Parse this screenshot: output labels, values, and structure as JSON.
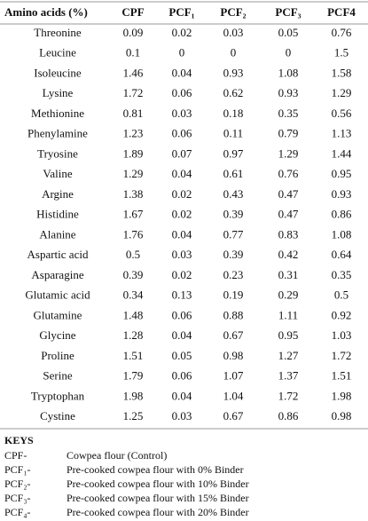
{
  "table": {
    "header": [
      "Amino acids (%)",
      "CPF",
      "PCF₁",
      "PCF₂",
      "PCF₃",
      "PCF4"
    ],
    "rows": [
      [
        "Threonine",
        0.09,
        0.02,
        0.03,
        0.05,
        0.76
      ],
      [
        "Leucine",
        0.1,
        0,
        0,
        0,
        1.5
      ],
      [
        "Isoleucine",
        1.46,
        0.04,
        0.93,
        1.08,
        1.58
      ],
      [
        "Lysine",
        1.72,
        0.06,
        0.62,
        0.93,
        1.29
      ],
      [
        "Methionine",
        0.81,
        0.03,
        0.18,
        0.35,
        0.56
      ],
      [
        "Phenylamine",
        1.23,
        0.06,
        0.11,
        0.79,
        1.13
      ],
      [
        "Tryosine",
        1.89,
        0.07,
        0.97,
        1.29,
        1.44
      ],
      [
        "Valine",
        1.29,
        0.04,
        0.61,
        0.76,
        0.95
      ],
      [
        "Argine",
        1.38,
        0.02,
        0.43,
        0.47,
        0.93
      ],
      [
        "Histidine",
        1.67,
        0.02,
        0.39,
        0.47,
        0.86
      ],
      [
        "Alanine",
        1.76,
        0.04,
        0.77,
        0.83,
        1.08
      ],
      [
        "Aspartic acid",
        0.5,
        0.03,
        0.39,
        0.42,
        0.64
      ],
      [
        "Asparagine",
        0.39,
        0.02,
        0.23,
        0.31,
        0.35
      ],
      [
        "Glutamic acid",
        0.34,
        0.13,
        0.19,
        0.29,
        0.5
      ],
      [
        "Glutamine",
        1.48,
        0.06,
        0.88,
        1.11,
        0.92
      ],
      [
        "Glycine",
        1.28,
        0.04,
        0.67,
        0.95,
        1.03
      ],
      [
        "Proline",
        1.51,
        0.05,
        0.98,
        1.27,
        1.72
      ],
      [
        "Serine",
        1.79,
        0.06,
        1.07,
        1.37,
        1.51
      ],
      [
        "Tryptophan",
        1.98,
        0.04,
        1.04,
        1.72,
        1.98
      ],
      [
        "Cystine",
        1.25,
        0.03,
        0.67,
        0.86,
        0.98
      ]
    ]
  },
  "keys": {
    "title": "KEYS",
    "items": [
      {
        "code": "CPF-",
        "desc": "Cowpea flour (Control)"
      },
      {
        "code": "PCF₁-",
        "desc": "Pre-cooked cowpea flour with 0% Binder"
      },
      {
        "code": "PCF₂-",
        "desc": "Pre-cooked cowpea flour with 10% Binder"
      },
      {
        "code": "PCF₃-",
        "desc": "Pre-cooked cowpea flour with 15% Binder"
      },
      {
        "code": "PCF₄-",
        "desc": "Pre-cooked cowpea flour with 20% Binder"
      }
    ]
  }
}
